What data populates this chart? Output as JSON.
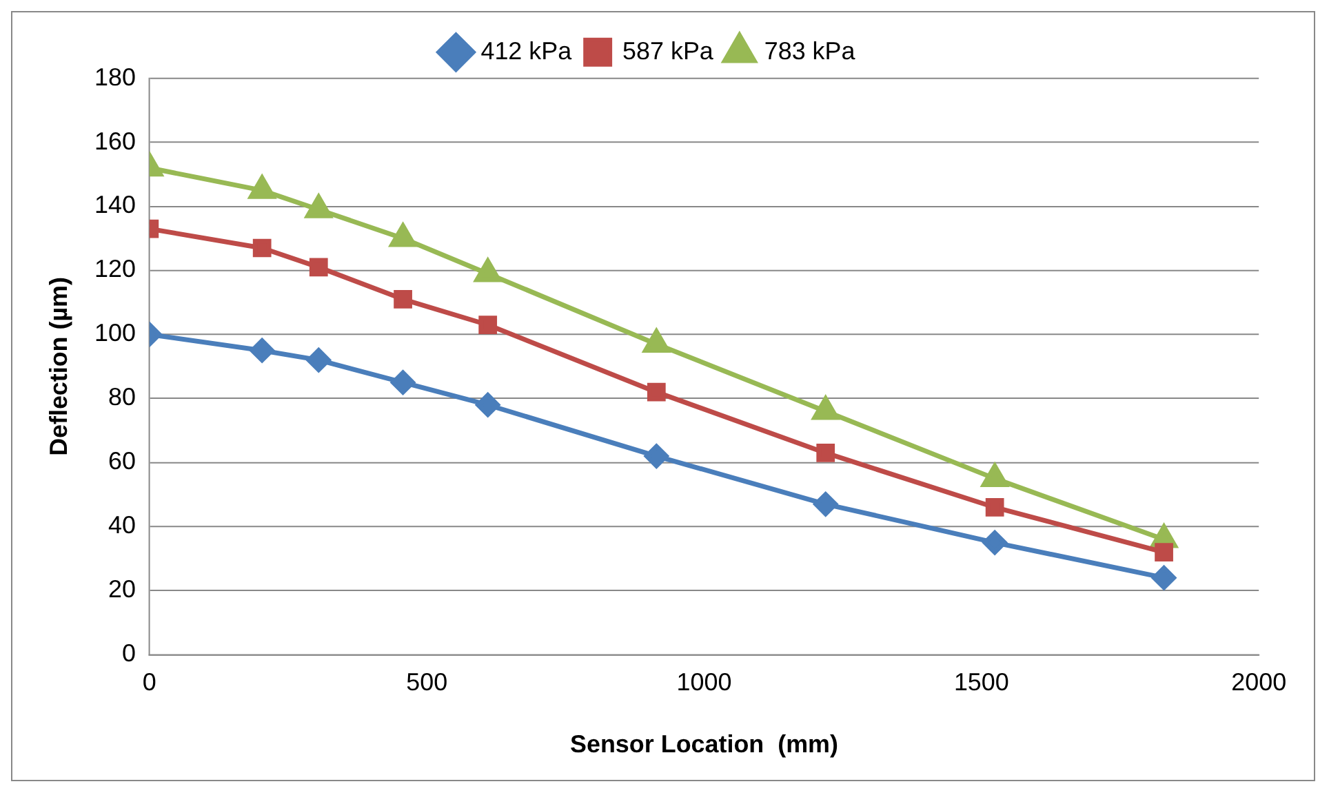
{
  "chart_data": {
    "type": "line",
    "xlabel": "Sensor Location  (mm)",
    "ylabel": "Deflection (µm)",
    "x": [
      0,
      203,
      305,
      457,
      610,
      914,
      1219,
      1524,
      1829
    ],
    "series": [
      {
        "name": "412 kPa",
        "color": "#4a7ebb",
        "marker": "diamond",
        "values": [
          100,
          95,
          92,
          85,
          78,
          62,
          47,
          35,
          24
        ]
      },
      {
        "name": "587 kPa",
        "color": "#be4b48",
        "marker": "square",
        "values": [
          133,
          127,
          121,
          111,
          103,
          82,
          63,
          46,
          32
        ]
      },
      {
        "name": "783 kPa",
        "color": "#98b954",
        "marker": "triangle",
        "values": [
          152,
          145,
          139,
          130,
          119,
          97,
          76,
          55,
          36
        ]
      }
    ],
    "xlim": [
      0,
      2000
    ],
    "xticks": [
      0,
      500,
      1000,
      1500,
      2000
    ],
    "ylim": [
      0,
      180
    ],
    "yticks": [
      0,
      20,
      40,
      60,
      80,
      100,
      120,
      140,
      160,
      180
    ],
    "grid": "y",
    "legend": "top",
    "line_style": "solid"
  }
}
